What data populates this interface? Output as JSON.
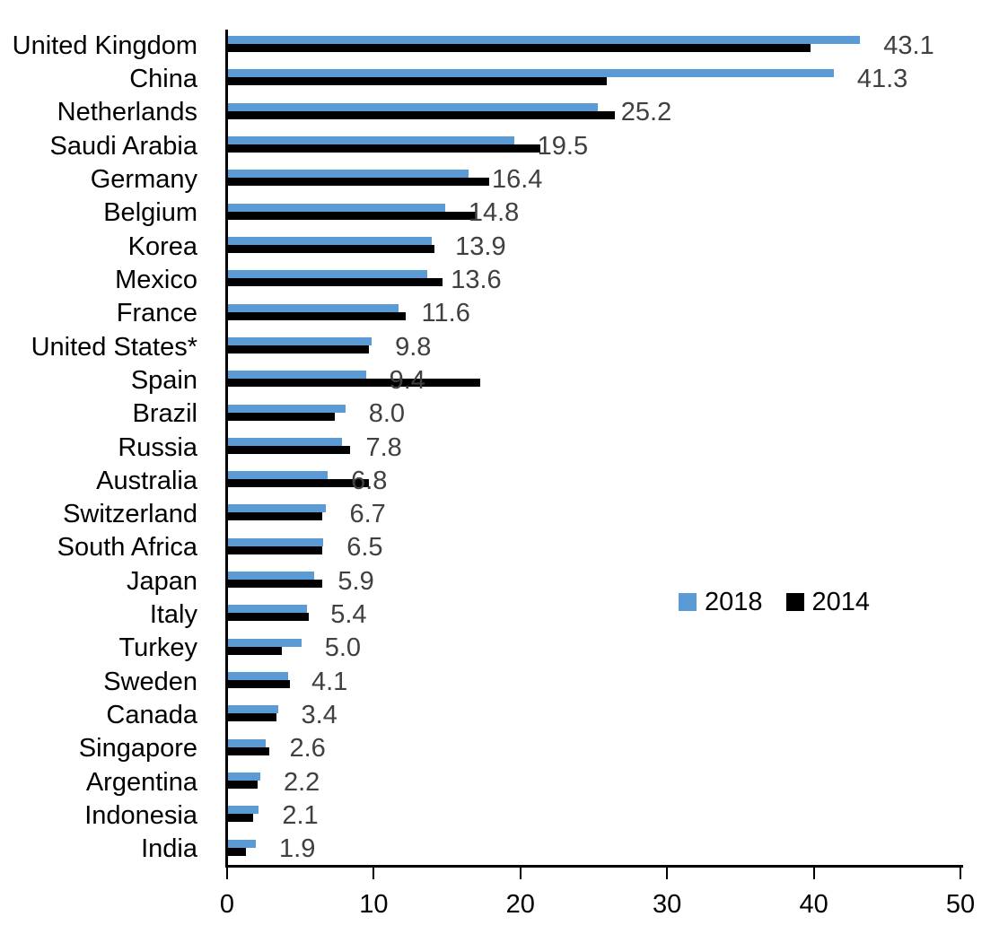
{
  "chart_data": {
    "type": "bar",
    "orientation": "horizontal",
    "title": "",
    "xlabel": "",
    "ylabel": "",
    "categories": [
      "United Kingdom",
      "China",
      "Netherlands",
      "Saudi Arabia",
      "Germany",
      "Belgium",
      "Korea",
      "Mexico",
      "France",
      "United States*",
      "Spain",
      "Brazil",
      "Russia",
      "Australia",
      "Switzerland",
      "South Africa",
      "Japan",
      "Italy",
      "Turkey",
      "Sweden",
      "Canada",
      "Singapore",
      "Argentina",
      "Indonesia",
      "India"
    ],
    "series": [
      {
        "name": "2018",
        "color": "#5B9BD5",
        "values": [
          43.1,
          41.3,
          25.2,
          19.5,
          16.4,
          14.8,
          13.9,
          13.6,
          11.6,
          9.8,
          9.4,
          8.0,
          7.8,
          6.8,
          6.7,
          6.5,
          5.9,
          5.4,
          5.0,
          4.1,
          3.4,
          2.6,
          2.2,
          2.1,
          1.9
        ]
      },
      {
        "name": "2014",
        "color": "#000000",
        "values": [
          39.7,
          25.8,
          26.4,
          21.3,
          17.8,
          16.9,
          14.1,
          14.6,
          12.1,
          9.6,
          17.2,
          7.3,
          8.3,
          9.6,
          6.4,
          6.4,
          6.4,
          5.5,
          3.7,
          4.2,
          3.3,
          2.8,
          2.0,
          1.7,
          1.2
        ]
      }
    ],
    "data_labels": {
      "labeled_series": "2018",
      "values": [
        "43.1",
        "41.3",
        "25.2",
        "19.5",
        "16.4",
        "14.8",
        "13.9",
        "13.6",
        "11.6",
        "9.8",
        "9.4",
        "8.0",
        "7.8",
        "6.8",
        "6.7",
        "6.5",
        "5.9",
        "5.4",
        "5.0",
        "4.1",
        "3.4",
        "2.6",
        "2.2",
        "2.1",
        "1.9"
      ],
      "color": "#404040"
    },
    "x_axis": {
      "min": 0,
      "max": 50,
      "tick_labels": [
        "0",
        "10",
        "20",
        "30",
        "40",
        "50"
      ],
      "tick_values": [
        0,
        10,
        20,
        30,
        40,
        50
      ]
    },
    "grid": "off",
    "legend": {
      "position": "center-right",
      "entries": [
        {
          "label": "2018",
          "color": "#5B9BD5"
        },
        {
          "label": "2014",
          "color": "#000000"
        }
      ]
    },
    "axis_color": "#000000"
  }
}
